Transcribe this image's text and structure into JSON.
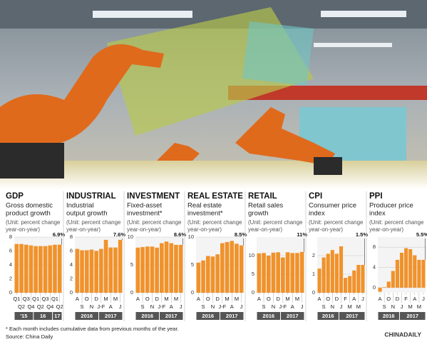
{
  "footnote": "* Each month includes cumulative data from previous months of the year.",
  "source": "Source: China Daily",
  "brand": "CHINADAILY",
  "unit": [
    "(Unit: percent change",
    "year-on-year)"
  ],
  "chart_data": [
    {
      "type": "bar",
      "title": "GDP",
      "subtitle": [
        "Gross domestic",
        "product growth"
      ],
      "color": "#f0922b",
      "groups": [
        {
          "label": "'15",
          "categories": [
            "Q1",
            "Q2",
            "Q3",
            "Q4"
          ]
        },
        {
          "label": "16",
          "categories": [
            "Q1",
            "Q2",
            "Q3",
            "Q4"
          ]
        },
        {
          "label": "17",
          "categories": [
            "Q1",
            "Q2"
          ]
        }
      ],
      "values": [
        7.0,
        7.0,
        6.9,
        6.8,
        6.7,
        6.7,
        6.7,
        6.8,
        6.9,
        6.9
      ],
      "value_labels": [
        null,
        null,
        null,
        null,
        null,
        null,
        null,
        null,
        null,
        "6.9%"
      ],
      "ylim": [
        0,
        8
      ],
      "yticks": [
        0,
        2,
        4,
        6,
        8
      ]
    },
    {
      "type": "bar",
      "title": "INDUSTRIAL",
      "subtitle": [
        "Industrial",
        "output growth"
      ],
      "color": "#f0922b",
      "groups": [
        {
          "label": "2016",
          "categories": [
            "A",
            "S",
            "O",
            "N",
            "D"
          ]
        },
        {
          "label": "2017",
          "categories": [
            "J-F",
            "M",
            "A",
            "M",
            "J"
          ]
        }
      ],
      "values": [
        6.3,
        6.1,
        6.1,
        6.2,
        6.0,
        6.3,
        7.6,
        6.5,
        6.5,
        7.6
      ],
      "value_labels": [
        null,
        null,
        null,
        null,
        null,
        null,
        null,
        null,
        null,
        "7.6%"
      ],
      "ylim": [
        0,
        8
      ],
      "yticks": [
        0,
        2,
        4,
        6,
        8
      ]
    },
    {
      "type": "bar",
      "title": "INVESTMENT",
      "subtitle": [
        "Fixed-asset",
        "investment*"
      ],
      "color": "#f0922b",
      "groups": [
        {
          "label": "2016",
          "categories": [
            "A",
            "S",
            "O",
            "N",
            "D"
          ]
        },
        {
          "label": "2017",
          "categories": [
            "J-F",
            "M",
            "A",
            "M",
            "J"
          ]
        }
      ],
      "values": [
        8.1,
        8.2,
        8.3,
        8.3,
        8.1,
        8.9,
        9.2,
        8.9,
        8.6,
        8.6
      ],
      "value_labels": [
        null,
        null,
        null,
        null,
        null,
        null,
        null,
        null,
        null,
        "8.6%"
      ],
      "ylim": [
        0,
        10
      ],
      "yticks": [
        0,
        5,
        10
      ]
    },
    {
      "type": "bar",
      "title": "REAL ESTATE",
      "subtitle": [
        "Real estate",
        "investment*"
      ],
      "color": "#f0922b",
      "groups": [
        {
          "label": "2016",
          "categories": [
            "A",
            "S",
            "O",
            "N",
            "D"
          ]
        },
        {
          "label": "2017",
          "categories": [
            "J-F",
            "M",
            "A",
            "M",
            "J"
          ]
        }
      ],
      "values": [
        5.4,
        5.8,
        6.6,
        6.5,
        6.9,
        8.9,
        9.1,
        9.3,
        8.8,
        8.5
      ],
      "value_labels": [
        null,
        null,
        null,
        null,
        null,
        null,
        null,
        null,
        null,
        "8.5%"
      ],
      "ylim": [
        0,
        10
      ],
      "yticks": [
        0,
        5,
        10
      ]
    },
    {
      "type": "bar",
      "title": "RETAIL",
      "subtitle": [
        "Retail sales",
        "growth"
      ],
      "color": "#f0922b",
      "groups": [
        {
          "label": "2016",
          "categories": [
            "A",
            "S",
            "O",
            "N",
            "D"
          ]
        },
        {
          "label": "2017",
          "categories": [
            "J-F",
            "M",
            "A",
            "M",
            "J"
          ]
        }
      ],
      "values": [
        10.6,
        10.7,
        10.0,
        10.8,
        10.9,
        9.5,
        10.9,
        10.7,
        10.7,
        11.0
      ],
      "value_labels": [
        null,
        null,
        null,
        null,
        null,
        null,
        null,
        null,
        null,
        "11%"
      ],
      "ylim": [
        0,
        15
      ],
      "yticks": [
        0,
        5,
        10
      ]
    },
    {
      "type": "bar",
      "title": "CPI",
      "subtitle": [
        "Consumer price",
        "index"
      ],
      "color": "#f0922b",
      "groups": [
        {
          "label": "2016",
          "categories": [
            "A",
            "S",
            "O",
            "N",
            "D"
          ]
        },
        {
          "label": "2017",
          "categories": [
            "J",
            "F",
            "M",
            "A",
            "M",
            "J"
          ]
        }
      ],
      "values": [
        1.3,
        1.9,
        2.1,
        2.3,
        2.1,
        2.5,
        0.8,
        0.9,
        1.2,
        1.5,
        1.5
      ],
      "value_labels": [
        null,
        null,
        null,
        null,
        null,
        null,
        null,
        null,
        null,
        null,
        "1.5%"
      ],
      "ylim": [
        0,
        3
      ],
      "yticks": [
        0,
        1,
        2
      ]
    },
    {
      "type": "bar",
      "title": "PPI",
      "subtitle": [
        "Producer price",
        "index"
      ],
      "color": "#f0922b",
      "groups": [
        {
          "label": "2016",
          "categories": [
            "A",
            "S",
            "O",
            "N",
            "D"
          ]
        },
        {
          "label": "2017",
          "categories": [
            "J",
            "F",
            "M",
            "A",
            "M",
            "J"
          ]
        }
      ],
      "values": [
        -0.8,
        0.1,
        1.2,
        3.3,
        5.5,
        6.9,
        7.8,
        7.6,
        6.4,
        5.5,
        5.5
      ],
      "value_labels": [
        null,
        null,
        null,
        null,
        null,
        null,
        null,
        null,
        null,
        null,
        "5.5%"
      ],
      "ylim": [
        -1,
        10
      ],
      "yticks": [
        0,
        4,
        8
      ]
    }
  ]
}
